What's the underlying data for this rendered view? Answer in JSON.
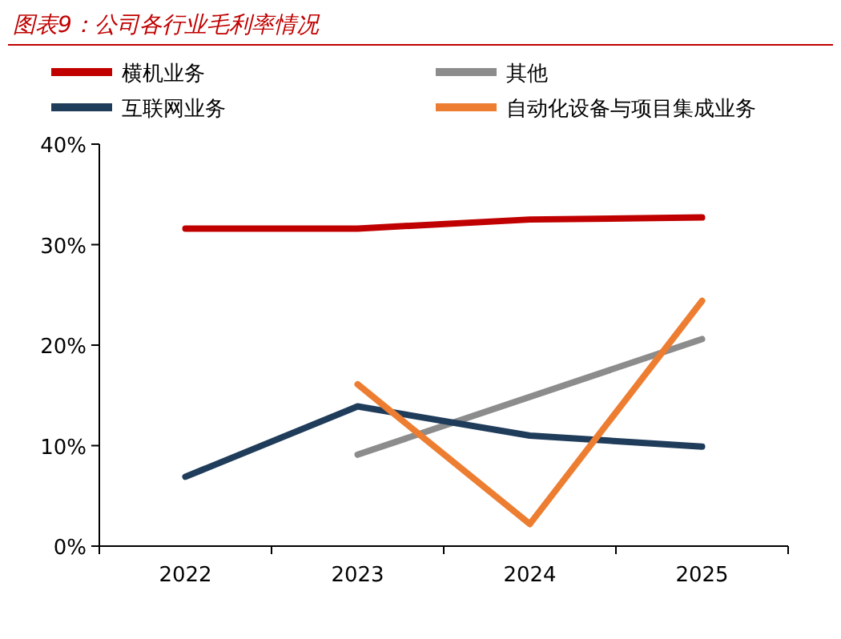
{
  "chart_data": {
    "type": "line",
    "title": "图表9：公司各行业毛利率情况",
    "categories": [
      "2022",
      "2023",
      "2024",
      "2025"
    ],
    "series": [
      {
        "name": "横机业务",
        "color": "#c00000",
        "values": [
          31.6,
          31.6,
          32.5,
          32.7
        ]
      },
      {
        "name": "其他",
        "color": "#8c8c8c",
        "values": [
          null,
          9.1,
          null,
          20.6
        ]
      },
      {
        "name": "互联网业务",
        "color": "#1f3c5a",
        "values": [
          6.9,
          13.9,
          11.0,
          9.9
        ]
      },
      {
        "name": "自动化设备与项目集成业务",
        "color": "#ed7d31",
        "values": [
          null,
          16.1,
          2.2,
          24.4
        ]
      }
    ],
    "ylim": [
      0,
      40
    ],
    "yticks": [
      {
        "value": 0,
        "label": "0%"
      },
      {
        "value": 10,
        "label": "10%"
      },
      {
        "value": 20,
        "label": "20%"
      },
      {
        "value": 30,
        "label": "30%"
      },
      {
        "value": 40,
        "label": "40%"
      }
    ],
    "legend": "top"
  }
}
